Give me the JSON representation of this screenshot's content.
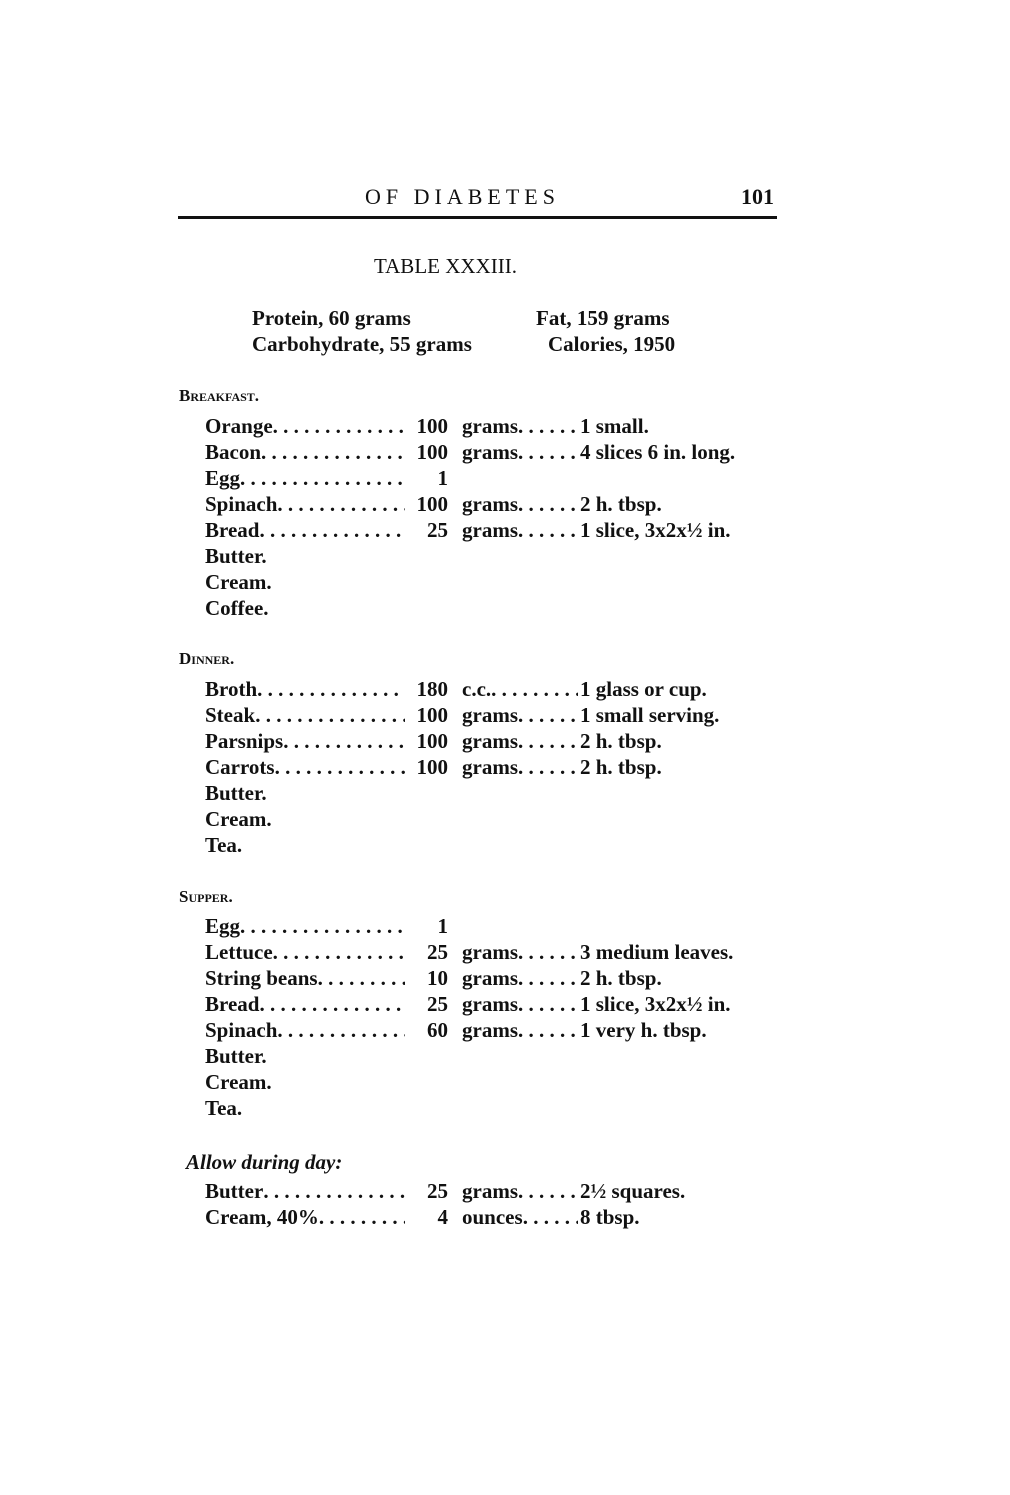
{
  "header": {
    "running_title": "OF DIABETES",
    "page_number": "101"
  },
  "table": {
    "title": "TABLE XXXIII.",
    "nutrients": {
      "protein": "Protein, 60 grams",
      "fat": "Fat, 159 grams",
      "carbohydrate": "Carbohydrate, 55 grams",
      "calories": "Calories, 1950"
    },
    "breakfast": {
      "heading": "Breakfast.",
      "items": [
        {
          "name": "Orange",
          "qty": "100",
          "unit": "grams",
          "desc": "1 small."
        },
        {
          "name": "Bacon",
          "qty": "100",
          "unit": "grams",
          "desc": "4 slices 6 in. long."
        },
        {
          "name": "Egg",
          "qty": "1",
          "unit": "",
          "desc": ""
        },
        {
          "name": "Spinach",
          "qty": "100",
          "unit": "grams",
          "desc": "2 h. tbsp."
        },
        {
          "name": "Bread",
          "qty": "25",
          "unit": "grams",
          "desc": "1 slice, 3x2x½ in."
        },
        {
          "name": "Butter.",
          "qty": "",
          "unit": "",
          "desc": ""
        },
        {
          "name": "Cream.",
          "qty": "",
          "unit": "",
          "desc": ""
        },
        {
          "name": "Coffee.",
          "qty": "",
          "unit": "",
          "desc": ""
        }
      ]
    },
    "dinner": {
      "heading": "Dinner.",
      "items": [
        {
          "name": "Broth",
          "qty": "180",
          "unit": "c.c.",
          "desc": "1 glass or cup."
        },
        {
          "name": "Steak",
          "qty": "100",
          "unit": "grams",
          "desc": "1 small serving."
        },
        {
          "name": "Parsnips",
          "qty": "100",
          "unit": "grams",
          "desc": "2 h. tbsp."
        },
        {
          "name": "Carrots",
          "qty": "100",
          "unit": "grams",
          "desc": "2 h. tbsp."
        },
        {
          "name": "Butter.",
          "qty": "",
          "unit": "",
          "desc": ""
        },
        {
          "name": "Cream.",
          "qty": "",
          "unit": "",
          "desc": ""
        },
        {
          "name": "Tea.",
          "qty": "",
          "unit": "",
          "desc": ""
        }
      ]
    },
    "supper": {
      "heading": "Supper.",
      "items": [
        {
          "name": "Egg",
          "qty": "1",
          "unit": "",
          "desc": ""
        },
        {
          "name": "Lettuce",
          "qty": "25",
          "unit": "grams",
          "desc": "3 medium leaves."
        },
        {
          "name": "String beans",
          "qty": "10",
          "unit": "grams",
          "desc": "2 h. tbsp."
        },
        {
          "name": "Bread",
          "qty": "25",
          "unit": "grams",
          "desc": "1 slice, 3x2x½ in."
        },
        {
          "name": "Spinach",
          "qty": "60",
          "unit": "grams",
          "desc": "1 very h. tbsp."
        },
        {
          "name": "Butter.",
          "qty": "",
          "unit": "",
          "desc": ""
        },
        {
          "name": "Cream.",
          "qty": "",
          "unit": "",
          "desc": ""
        },
        {
          "name": "Tea.",
          "qty": "",
          "unit": "",
          "desc": ""
        }
      ]
    },
    "allow": {
      "heading": "Allow during day:",
      "items": [
        {
          "name": "Butter",
          "qty": "25",
          "unit": "grams",
          "desc": "2½ squares."
        },
        {
          "name": "Cream, 40%",
          "qty": "4",
          "unit": "ounces",
          "desc": "8 tbsp."
        }
      ]
    }
  }
}
